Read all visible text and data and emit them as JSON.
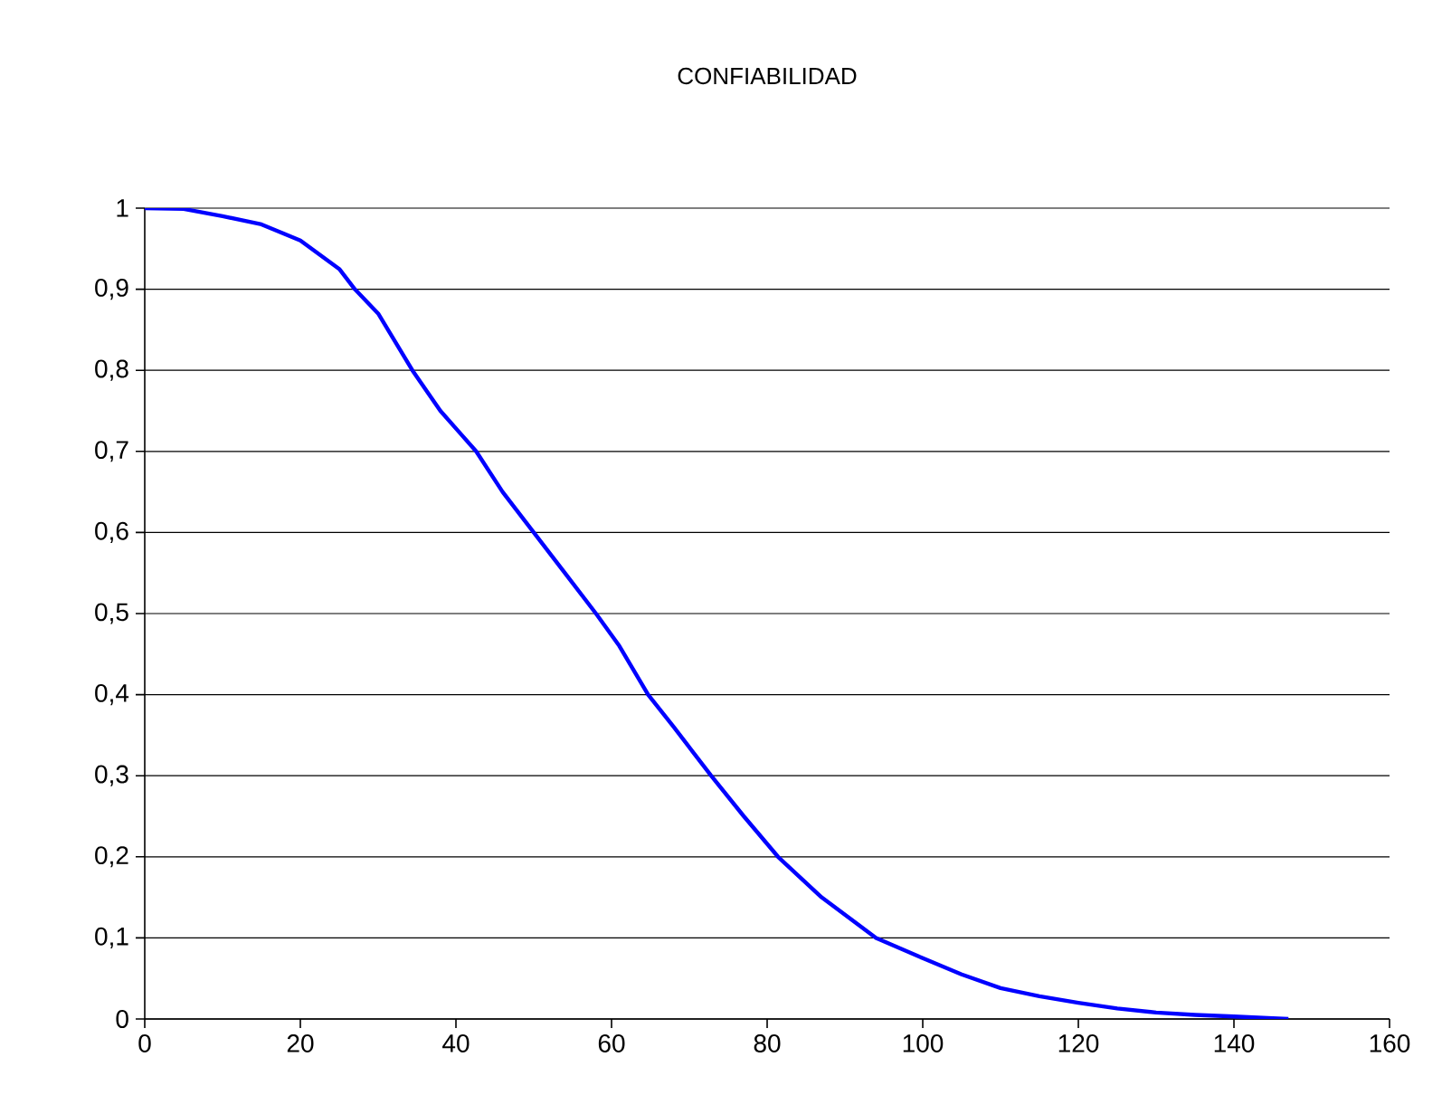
{
  "chart_data": {
    "type": "line",
    "title": "CONFIABILIDAD",
    "xlim": [
      0,
      160
    ],
    "xticks": [
      0,
      20,
      40,
      60,
      80,
      100,
      120,
      140,
      160
    ],
    "ylim": [
      0,
      1
    ],
    "yticks": [
      0,
      {
        "value": 0.1,
        "label": "0,1"
      },
      {
        "value": 0.2,
        "label": "0,2"
      },
      {
        "value": 0.3,
        "label": "0,3"
      },
      {
        "value": 0.4,
        "label": "0,4"
      },
      {
        "value": 0.5,
        "label": "0,5"
      },
      {
        "value": 0.6,
        "label": "0,6"
      },
      {
        "value": 0.7,
        "label": "0,7"
      },
      {
        "value": 0.8,
        "label": "0,8"
      },
      {
        "value": 0.9,
        "label": "0,9"
      },
      1
    ],
    "grid": "y",
    "marker": "none",
    "line_style": "solid",
    "series": [
      {
        "color": "#0000ff",
        "x": [
          0,
          5,
          10,
          15,
          20,
          25,
          27,
          30,
          34.4,
          38,
          42.6,
          46,
          50,
          54,
          58,
          61,
          64.7,
          68,
          72.8,
          77,
          81.4,
          87,
          94,
          100,
          105,
          110,
          115,
          120,
          125,
          130,
          135,
          140,
          145,
          147
        ],
        "values": [
          1,
          0.999,
          0.99,
          0.98,
          0.96,
          0.925,
          0.9,
          0.87,
          0.8,
          0.75,
          0.7,
          0.65,
          0.6,
          0.55,
          0.5,
          0.46,
          0.4,
          0.36,
          0.3,
          0.25,
          0.2,
          0.15,
          0.1,
          0.075,
          0.055,
          0.038,
          0.028,
          0.02,
          0.013,
          0.008,
          0.005,
          0.003,
          0.001,
          0
        ]
      }
    ]
  }
}
